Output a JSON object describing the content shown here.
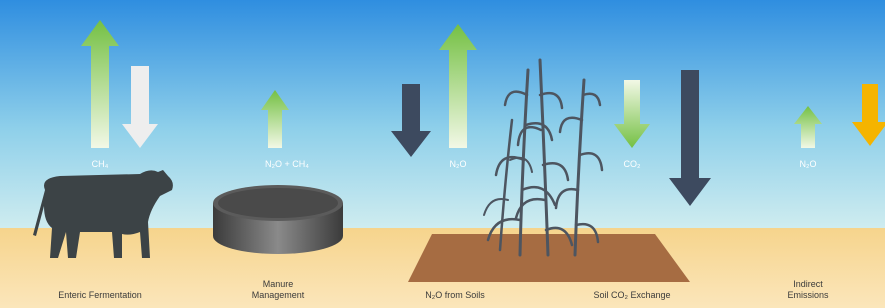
{
  "gas_labels": [
    "CH₄",
    "N₂O + CH₄",
    "N₂O",
    "CO₂",
    "N₂O"
  ],
  "sources": [
    {
      "lines": [
        "Enteric Fermentation"
      ]
    },
    {
      "lines": [
        "Manure",
        "Management"
      ]
    },
    {
      "lines": [
        "N₂O from Soils"
      ]
    },
    {
      "lines": [
        "Soil CO₂ Exchange"
      ]
    },
    {
      "lines": [
        "Indirect",
        "Emissions"
      ]
    }
  ]
}
